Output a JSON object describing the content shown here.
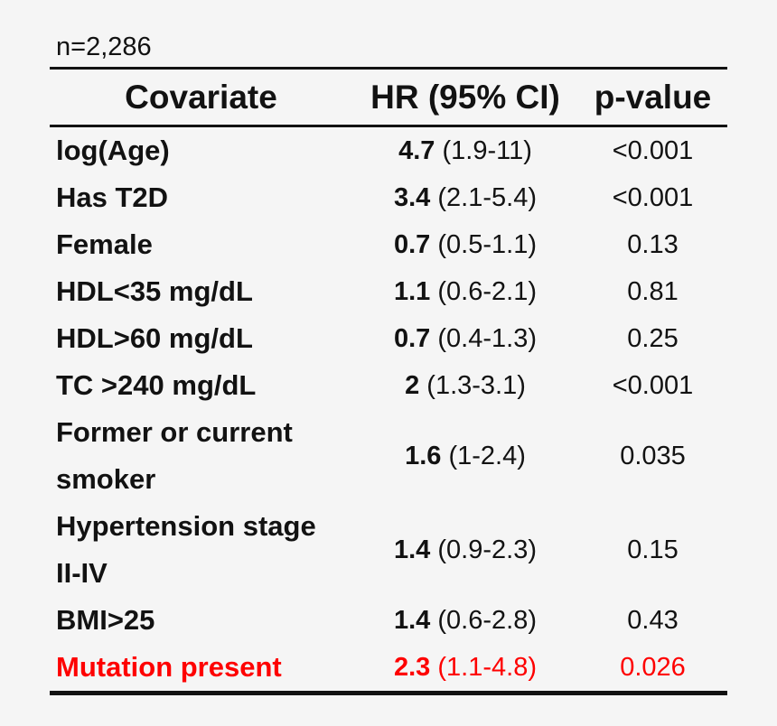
{
  "colors": {
    "background": "#f5f5f5",
    "text": "#121212",
    "rule": "#121212",
    "highlight": "#fe0000"
  },
  "figure": {
    "sample_size_label": "n=2,286"
  },
  "table": {
    "header": {
      "covariate": "Covariate",
      "hr": "HR (95% CI)",
      "p": "p-value"
    },
    "rows": [
      {
        "covariate": "log(Age)",
        "hr": "4.7",
        "ci": "(1.9-11)",
        "p": "<0.001",
        "highlight": false
      },
      {
        "covariate": "Has T2D",
        "hr": "3.4",
        "ci": "(2.1-5.4)",
        "p": "<0.001",
        "highlight": false
      },
      {
        "covariate": "Female",
        "hr": "0.7",
        "ci": "(0.5-1.1)",
        "p": "0.13",
        "highlight": false
      },
      {
        "covariate": "HDL<35 mg/dL",
        "hr": "1.1",
        "ci": "(0.6-2.1)",
        "p": "0.81",
        "highlight": false
      },
      {
        "covariate": "HDL>60 mg/dL",
        "hr": "0.7",
        "ci": "(0.4-1.3)",
        "p": "0.25",
        "highlight": false
      },
      {
        "covariate": "TC >240 mg/dL",
        "hr": "2",
        "ci": "(1.3-3.1)",
        "p": "<0.001",
        "highlight": false
      },
      {
        "covariate": "Former or current\nsmoker",
        "hr": "1.6",
        "ci": "(1-2.4)",
        "p": "0.035",
        "highlight": false
      },
      {
        "covariate": "Hypertension stage\nII-IV",
        "hr": "1.4",
        "ci": "(0.9-2.3)",
        "p": "0.15",
        "highlight": false
      },
      {
        "covariate": "BMI>25",
        "hr": "1.4",
        "ci": "(0.6-2.8)",
        "p": "0.43",
        "highlight": false
      },
      {
        "covariate": "Mutation present",
        "hr": "2.3",
        "ci": "(1.1-4.8)",
        "p": "0.026",
        "highlight": true
      }
    ]
  },
  "chart_data": {
    "type": "table",
    "title": "n=2,286",
    "columns": [
      "Covariate",
      "HR (95% CI)",
      "p-value"
    ],
    "rows": [
      [
        "log(Age)",
        "4.7 (1.9-11)",
        "<0.001"
      ],
      [
        "Has T2D",
        "3.4 (2.1-5.4)",
        "<0.001"
      ],
      [
        "Female",
        "0.7 (0.5-1.1)",
        "0.13"
      ],
      [
        "HDL<35 mg/dL",
        "1.1 (0.6-2.1)",
        "0.81"
      ],
      [
        "HDL>60 mg/dL",
        "0.7 (0.4-1.3)",
        "0.25"
      ],
      [
        "TC >240 mg/dL",
        "2 (1.3-3.1)",
        "<0.001"
      ],
      [
        "Former or current smoker",
        "1.6 (1-2.4)",
        "0.035"
      ],
      [
        "Hypertension stage II-IV",
        "1.4 (0.9-2.3)",
        "0.15"
      ],
      [
        "BMI>25",
        "1.4 (0.6-2.8)",
        "0.43"
      ],
      [
        "Mutation present",
        "2.3 (1.1-4.8)",
        "0.026"
      ]
    ],
    "hazard_ratios": {
      "labels": [
        "log(Age)",
        "Has T2D",
        "Female",
        "HDL<35 mg/dL",
        "HDL>60 mg/dL",
        "TC >240 mg/dL",
        "Former or current smoker",
        "Hypertension stage II-IV",
        "BMI>25",
        "Mutation present"
      ],
      "hr": [
        4.7,
        3.4,
        0.7,
        1.1,
        0.7,
        2,
        1.6,
        1.4,
        1.4,
        2.3
      ],
      "ci_low": [
        1.9,
        2.1,
        0.5,
        0.6,
        0.4,
        1.3,
        1,
        0.9,
        0.6,
        1.1
      ],
      "ci_high": [
        11,
        5.4,
        1.1,
        2.1,
        1.3,
        3.1,
        2.4,
        2.3,
        2.8,
        4.8
      ],
      "p_value": [
        "<0.001",
        "<0.001",
        "0.13",
        "0.81",
        "0.25",
        "<0.001",
        "0.035",
        "0.15",
        "0.43",
        "0.026"
      ]
    },
    "highlight_row": "Mutation present",
    "highlight_color": "#fe0000"
  }
}
